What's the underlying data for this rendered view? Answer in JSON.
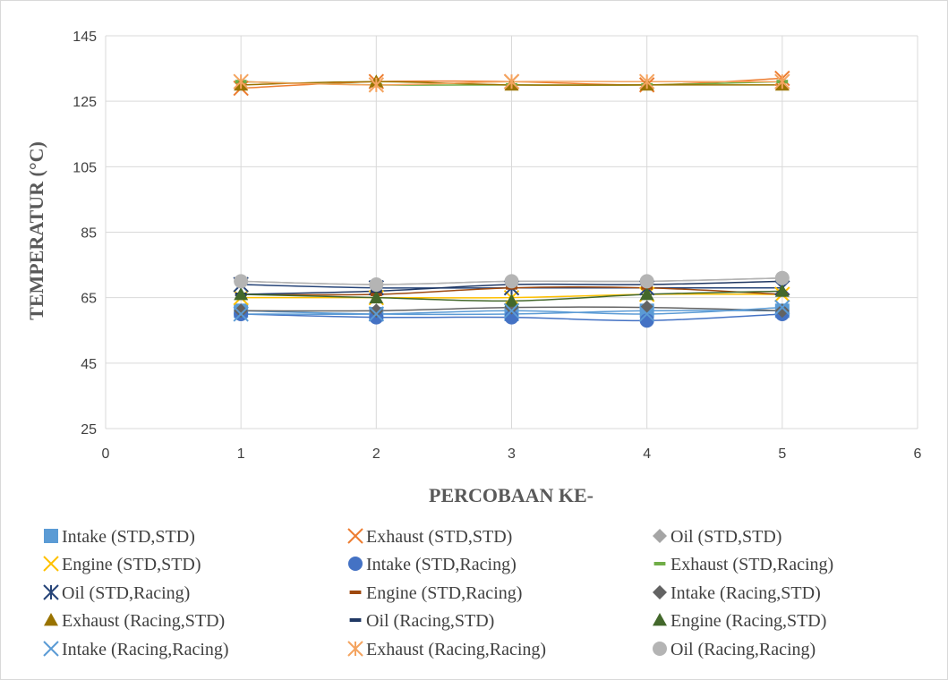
{
  "chart_data": {
    "type": "scatter",
    "title": "",
    "xlabel": "PERCOBAAN KE-",
    "ylabel": "TEMPERATUR (°C)",
    "xlim": [
      0,
      6
    ],
    "ylim": [
      25,
      145
    ],
    "x_ticks": [
      0,
      1,
      2,
      3,
      4,
      5,
      6
    ],
    "y_ticks": [
      25,
      45,
      65,
      85,
      105,
      125,
      145
    ],
    "grid": true,
    "smooth_lines": true,
    "legend_position": "bottom",
    "x": [
      1,
      2,
      3,
      4,
      5
    ],
    "series": [
      {
        "name": "Intake (STD,STD)",
        "marker": "square",
        "color": "#5b9bd5",
        "values": [
          61,
          60,
          60,
          61,
          61
        ]
      },
      {
        "name": "Exhaust (STD,STD)",
        "marker": "x",
        "color": "#ed7d31",
        "values": [
          129,
          131,
          131,
          130,
          132
        ]
      },
      {
        "name": "Oil (STD,STD)",
        "marker": "diamond",
        "color": "#a5a5a5",
        "values": [
          70,
          69,
          70,
          70,
          71
        ]
      },
      {
        "name": "Engine (STD,STD)",
        "marker": "x",
        "color": "#ffc000",
        "values": [
          65,
          65,
          65,
          66,
          66
        ]
      },
      {
        "name": "Intake (STD,Racing)",
        "marker": "circle",
        "color": "#4472c4",
        "values": [
          60,
          59,
          59,
          58,
          60
        ]
      },
      {
        "name": "Exhaust (STD,Racing)",
        "marker": "dash",
        "color": "#70ad47",
        "values": [
          131,
          130,
          130,
          130,
          131
        ]
      },
      {
        "name": "Oil (STD,Racing)",
        "marker": "star",
        "color": "#264478",
        "values": [
          69,
          68,
          68,
          68,
          68
        ]
      },
      {
        "name": "Engine (STD,Racing)",
        "marker": "dash",
        "color": "#9e480e",
        "values": [
          66,
          66,
          68,
          68,
          66
        ]
      },
      {
        "name": "Intake (Racing,STD)",
        "marker": "diamond",
        "color": "#636363",
        "values": [
          61,
          61,
          62,
          62,
          61
        ]
      },
      {
        "name": "Exhaust (Racing,STD)",
        "marker": "triangle",
        "color": "#997300",
        "values": [
          130,
          131,
          130,
          130,
          130
        ]
      },
      {
        "name": "Oil (Racing,STD)",
        "marker": "dash",
        "color": "#203864",
        "values": [
          66,
          67,
          69,
          69,
          70
        ]
      },
      {
        "name": "Engine (Racing,STD)",
        "marker": "triangle",
        "color": "#43682b",
        "values": [
          66,
          65,
          64,
          66,
          67
        ]
      },
      {
        "name": "Intake (Racing,Racing)",
        "marker": "x",
        "color": "#5b9bd5",
        "values": [
          60,
          60,
          61,
          60,
          62
        ]
      },
      {
        "name": "Exhaust (Racing,Racing)",
        "marker": "star",
        "color": "#f4a460",
        "values": [
          131,
          130,
          131,
          131,
          131
        ]
      },
      {
        "name": "Oil (Racing,Racing)",
        "marker": "circle",
        "color": "#b4b4b4",
        "values": [
          70,
          69,
          70,
          70,
          71
        ]
      }
    ]
  }
}
